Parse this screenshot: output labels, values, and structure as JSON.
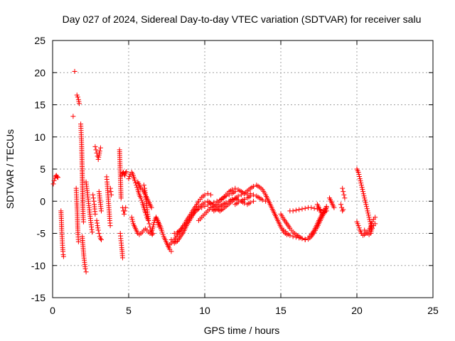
{
  "chart_data": {
    "type": "scatter",
    "title": "Day 027 of 2024, Sidereal Day-to-day VTEC variation (SDTVAR) for receiver salu",
    "xlabel": "GPS time / hours",
    "ylabel": "SDTVAR / TECUs",
    "xlim": [
      0,
      25
    ],
    "ylim": [
      -15,
      25
    ],
    "xticks": [
      0,
      5,
      10,
      15,
      20,
      25
    ],
    "yticks": [
      -15,
      -10,
      -5,
      0,
      5,
      10,
      15,
      20,
      25
    ],
    "grid": true,
    "marker": "+",
    "color": "#ff0000",
    "series": [
      {
        "name": "SDTVAR",
        "segments": [
          {
            "x": [
              0.05,
              0.1,
              0.15,
              0.2,
              0.25,
              0.3,
              0.35
            ],
            "y": [
              2.7,
              3.2,
              3.6,
              3.9,
              4.0,
              3.8,
              3.7
            ]
          },
          {
            "x": [
              0.55,
              0.58,
              0.6,
              0.62,
              0.64,
              0.66,
              0.68,
              0.7,
              0.72
            ],
            "y": [
              -1.5,
              -3.0,
              -4.5,
              -5.5,
              -6.5,
              -7.2,
              -7.8,
              -8.3,
              -8.6
            ]
          },
          {
            "x": [
              1.35
            ],
            "y": [
              13.2
            ]
          },
          {
            "x": [
              1.45
            ],
            "y": [
              20.2
            ]
          },
          {
            "x": [
              1.55,
              1.57,
              1.59,
              1.61,
              1.63,
              1.65,
              1.67,
              1.7
            ],
            "y": [
              2.0,
              1.0,
              0.0,
              -1.2,
              -2.5,
              -4.0,
              -5.2,
              -6.3
            ]
          },
          {
            "x": [
              1.6,
              1.65,
              1.7,
              1.75
            ],
            "y": [
              16.5,
              16.2,
              15.8,
              15.2
            ]
          },
          {
            "x": [
              1.85,
              1.87,
              1.89,
              1.91,
              1.93,
              1.95,
              1.97,
              1.99,
              2.01,
              2.03
            ],
            "y": [
              12.0,
              11.0,
              10.0,
              8.5,
              6.5,
              4.0,
              1.5,
              -1.0,
              -2.5,
              -3.2
            ]
          },
          {
            "x": [
              1.95,
              2.0,
              2.05,
              2.1,
              2.15,
              2.2
            ],
            "y": [
              -5.5,
              -7.0,
              -8.5,
              -9.5,
              -10.5,
              -11.0
            ]
          },
          {
            "x": [
              2.2,
              2.25,
              2.3,
              2.35,
              2.4,
              2.45,
              2.5,
              2.55,
              2.6
            ],
            "y": [
              3.0,
              2.0,
              1.0,
              0.0,
              -1.0,
              -2.0,
              -3.0,
              -4.0,
              -4.8
            ]
          },
          {
            "x": [
              2.65,
              2.68,
              2.71,
              2.74,
              2.77,
              2.8
            ],
            "y": [
              1.0,
              0.5,
              0.0,
              -0.5,
              -1.2,
              -2.0
            ]
          },
          {
            "x": [
              2.8,
              2.85,
              2.9,
              2.95,
              3.0,
              3.05,
              3.1,
              3.15
            ],
            "y": [
              8.5,
              8.0,
              7.5,
              7.0,
              6.5,
              7.2,
              7.8,
              8.3
            ]
          },
          {
            "x": [
              2.9,
              2.95,
              3.0,
              3.05,
              3.1,
              3.15,
              3.2
            ],
            "y": [
              -3.0,
              -3.8,
              -4.5,
              -5.0,
              -5.5,
              -5.8,
              -6.0
            ]
          },
          {
            "x": [
              3.05,
              3.1,
              3.15,
              3.2
            ],
            "y": [
              1.5,
              0.5,
              -0.5,
              -1.5
            ]
          },
          {
            "x": [
              3.55,
              3.58,
              3.61,
              3.64,
              3.67,
              3.7,
              3.73,
              3.76,
              3.79
            ],
            "y": [
              3.8,
              3.0,
              2.0,
              1.0,
              0.0,
              -1.0,
              -2.0,
              -3.0,
              -3.8
            ]
          },
          {
            "x": [
              3.8,
              3.83,
              3.86
            ],
            "y": [
              2.0,
              1.5,
              1.0
            ]
          },
          {
            "x": [
              4.4,
              4.42,
              4.44,
              4.46,
              4.48,
              4.5
            ],
            "y": [
              8.0,
              6.5,
              5.0,
              3.5,
              2.0,
              0.5
            ]
          },
          {
            "x": [
              4.45,
              4.48,
              4.51,
              4.54,
              4.57,
              4.6
            ],
            "y": [
              -5.0,
              -5.8,
              -6.5,
              -7.2,
              -7.8,
              -8.8
            ]
          },
          {
            "x": [
              4.55,
              4.6,
              4.65,
              4.7,
              4.75,
              4.8,
              4.85
            ],
            "y": [
              4.0,
              4.3,
              4.5,
              4.2,
              4.0,
              4.4,
              4.6
            ]
          },
          {
            "x": [
              4.6,
              4.65,
              4.7,
              4.75,
              4.8
            ],
            "y": [
              -1.0,
              -1.5,
              -2.0,
              -1.5,
              -1.0
            ]
          },
          {
            "x": [
              5.0,
              5.1,
              5.2,
              5.3,
              5.4,
              5.5,
              5.6,
              5.7,
              5.8,
              5.9,
              6.0,
              6.1,
              6.2,
              6.3
            ],
            "y": [
              3.5,
              4.2,
              4.5,
              4.0,
              3.2,
              2.5,
              1.8,
              1.0,
              0.5,
              -0.2,
              -1.0,
              -1.8,
              -2.5,
              -3.0
            ]
          },
          {
            "x": [
              5.2,
              5.3,
              5.4,
              5.5,
              5.6,
              5.7,
              5.8,
              5.9,
              6.0,
              6.1,
              6.2,
              6.3,
              6.4,
              6.5,
              6.6,
              6.7,
              6.8,
              6.9,
              7.0
            ],
            "y": [
              -2.5,
              -3.5,
              -4.0,
              -4.5,
              -5.0,
              -5.2,
              -5.0,
              -4.8,
              -4.5,
              -4.3,
              -4.5,
              -4.8,
              -5.0,
              -4.8,
              -4.0,
              -3.0,
              -2.5,
              -3.0,
              -4.0
            ]
          },
          {
            "x": [
              5.6,
              5.7,
              5.8,
              5.9,
              6.0,
              6.1,
              6.2,
              6.3,
              6.4,
              6.5
            ],
            "y": [
              3.0,
              2.5,
              2.0,
              1.8,
              1.5,
              1.0,
              0.5,
              0.0,
              -0.5,
              -1.0
            ]
          },
          {
            "x": [
              6.0,
              6.05,
              6.1,
              6.15,
              6.2,
              6.25,
              6.3,
              6.35,
              6.4,
              6.45,
              6.5,
              6.55,
              6.6
            ],
            "y": [
              2.5,
              2.0,
              1.0,
              0.0,
              -1.0,
              -2.0,
              -3.0,
              -3.5,
              -4.0,
              -4.5,
              -5.0,
              -5.2,
              -5.0
            ]
          },
          {
            "x": [
              6.8,
              6.9,
              7.0,
              7.1,
              7.2,
              7.3,
              7.4,
              7.5,
              7.6,
              7.7,
              7.8
            ],
            "y": [
              -2.5,
              -3.0,
              -3.5,
              -4.0,
              -4.8,
              -5.5,
              -6.0,
              -6.5,
              -7.0,
              -7.5,
              -7.8
            ]
          },
          {
            "x": [
              7.6,
              7.8,
              8.0,
              8.2,
              8.4,
              8.6,
              8.8,
              9.0,
              9.2,
              9.4,
              9.6,
              9.8,
              10.0,
              10.2,
              10.4
            ],
            "y": [
              -7.0,
              -6.5,
              -6.0,
              -5.2,
              -4.5,
              -3.8,
              -3.0,
              -2.3,
              -1.5,
              -0.8,
              0.0,
              0.6,
              1.0,
              1.2,
              1.0
            ]
          },
          {
            "x": [
              7.8,
              8.0,
              8.2,
              8.4,
              8.6,
              8.8,
              9.0,
              9.2,
              9.4,
              9.6,
              9.8,
              10.0,
              10.2,
              10.4,
              10.6,
              10.8,
              11.0
            ],
            "y": [
              -6.0,
              -6.5,
              -6.2,
              -5.5,
              -4.8,
              -3.8,
              -3.0,
              -2.2,
              -1.5,
              -1.0,
              -0.6,
              -0.2,
              0.0,
              -0.3,
              -0.8,
              -1.2,
              -1.5
            ]
          },
          {
            "x": [
              8.0,
              8.2,
              8.4,
              8.6,
              8.8,
              9.0,
              9.2,
              9.4,
              9.6,
              9.8,
              10.0,
              10.2,
              10.4,
              10.6,
              10.8,
              11.0,
              11.2,
              11.4,
              11.6,
              11.8,
              12.0
            ],
            "y": [
              -5.0,
              -4.8,
              -4.5,
              -4.0,
              -3.5,
              -2.8,
              -2.0,
              -1.5,
              -1.2,
              -1.0,
              -0.8,
              -0.6,
              -0.4,
              -0.2,
              0.0,
              0.2,
              0.5,
              0.8,
              1.0,
              1.2,
              1.5
            ]
          },
          {
            "x": [
              9.6,
              9.8,
              10.0,
              10.2,
              10.4,
              10.6,
              10.8,
              11.0,
              11.2,
              11.4,
              11.6,
              11.8,
              12.0,
              12.2,
              12.4,
              12.6,
              12.8,
              13.0
            ],
            "y": [
              -3.0,
              -2.5,
              -2.0,
              -1.5,
              -1.0,
              -0.8,
              -0.5,
              0.0,
              0.5,
              1.0,
              1.5,
              1.8,
              2.0,
              1.8,
              1.5,
              1.2,
              1.0,
              1.2
            ]
          },
          {
            "x": [
              10.4,
              10.6,
              10.8,
              11.0,
              11.2,
              11.4,
              11.6,
              11.8,
              12.0,
              12.2,
              12.4,
              12.6,
              12.8,
              13.0,
              13.2
            ],
            "y": [
              -1.0,
              -1.5,
              -1.2,
              -0.8,
              -0.5,
              -0.2,
              0.0,
              0.3,
              0.5,
              0.2,
              0.0,
              -0.3,
              -0.5,
              -0.2,
              0.0
            ]
          },
          {
            "x": [
              11.0,
              11.2,
              11.4,
              11.6,
              11.8,
              12.0,
              12.2,
              12.4,
              12.6,
              12.8,
              13.0,
              13.2,
              13.4,
              13.6,
              13.8,
              14.0,
              14.2,
              14.4,
              14.6,
              14.8,
              15.0,
              15.2,
              15.4
            ],
            "y": [
              -1.5,
              -1.2,
              -0.8,
              -0.4,
              0.0,
              0.4,
              0.8,
              1.0,
              1.2,
              1.6,
              2.0,
              2.3,
              2.5,
              2.2,
              1.8,
              1.0,
              0.0,
              -1.0,
              -2.0,
              -3.0,
              -4.0,
              -4.8,
              -5.2
            ]
          },
          {
            "x": [
              12.0,
              12.2,
              12.4,
              12.6,
              12.8,
              13.0,
              13.2,
              13.4,
              13.6,
              13.8,
              14.0
            ],
            "y": [
              -0.5,
              -0.2,
              0.0,
              0.3,
              0.5,
              0.8,
              1.0,
              0.8,
              0.5,
              0.2,
              0.0
            ]
          },
          {
            "x": [
              15.0,
              15.2,
              15.4,
              15.6,
              15.8,
              16.0,
              16.2,
              16.4,
              16.6,
              16.8,
              17.0,
              17.2,
              17.4,
              17.6,
              17.8,
              18.0
            ],
            "y": [
              -2.0,
              -2.8,
              -3.5,
              -4.2,
              -4.8,
              -5.2,
              -5.5,
              -5.8,
              -6.0,
              -5.9,
              -5.5,
              -4.8,
              -4.0,
              -3.0,
              -2.0,
              -1.0
            ]
          },
          {
            "x": [
              15.2,
              15.4,
              15.6,
              15.8,
              16.0,
              16.2,
              16.4,
              16.6,
              16.8,
              17.0,
              17.2,
              17.4,
              17.6,
              17.8,
              18.0
            ],
            "y": [
              -4.5,
              -5.0,
              -5.3,
              -5.5,
              -5.6,
              -5.7,
              -5.8,
              -5.9,
              -5.7,
              -5.2,
              -4.5,
              -3.5,
              -2.5,
              -1.8,
              -1.5
            ]
          },
          {
            "x": [
              15.6,
              15.8,
              16.0,
              16.2,
              16.4,
              16.6,
              16.8,
              17.0,
              17.2,
              17.4,
              17.6,
              17.8
            ],
            "y": [
              -1.5,
              -1.5,
              -1.4,
              -1.3,
              -1.2,
              -1.1,
              -1.0,
              -1.0,
              -1.1,
              -1.2,
              -1.3,
              -1.4
            ]
          },
          {
            "x": [
              17.4,
              17.5,
              17.6,
              17.7,
              17.8,
              17.9,
              18.0
            ],
            "y": [
              -0.5,
              -1.0,
              -1.5,
              -2.0,
              -2.0,
              -1.5,
              -0.8
            ]
          },
          {
            "x": [
              18.2,
              18.3,
              18.4,
              18.5
            ],
            "y": [
              0.5,
              0.0,
              -0.5,
              -1.0
            ]
          },
          {
            "x": [
              19.05,
              19.1,
              19.15,
              19.2
            ],
            "y": [
              2.0,
              1.5,
              1.0,
              0.5
            ]
          },
          {
            "x": [
              18.95,
              19.0,
              19.05,
              19.1
            ],
            "y": [
              -0.5,
              -1.0,
              -1.5,
              -1.3
            ]
          },
          {
            "x": [
              20.0,
              20.1,
              20.2,
              20.3,
              20.4,
              20.5,
              20.6,
              20.7,
              20.8,
              20.9,
              21.0
            ],
            "y": [
              5.0,
              4.5,
              3.5,
              2.5,
              1.5,
              0.5,
              -0.5,
              -1.5,
              -2.5,
              -3.5,
              -4.2
            ]
          },
          {
            "x": [
              20.0,
              20.1,
              20.2,
              20.3,
              20.4,
              20.5,
              20.6,
              20.7,
              20.8,
              20.9,
              21.0,
              21.1,
              21.2
            ],
            "y": [
              -3.2,
              -3.8,
              -4.5,
              -5.0,
              -5.3,
              -5.2,
              -5.0,
              -4.8,
              -4.5,
              -4.0,
              -3.2,
              -2.8,
              -2.5
            ]
          },
          {
            "x": [
              20.5,
              20.6,
              20.7,
              20.8,
              20.9,
              21.0,
              21.1,
              21.2
            ],
            "y": [
              -4.5,
              -4.8,
              -5.0,
              -5.2,
              -5.0,
              -4.2,
              -3.8,
              -3.5
            ]
          }
        ]
      }
    ]
  }
}
